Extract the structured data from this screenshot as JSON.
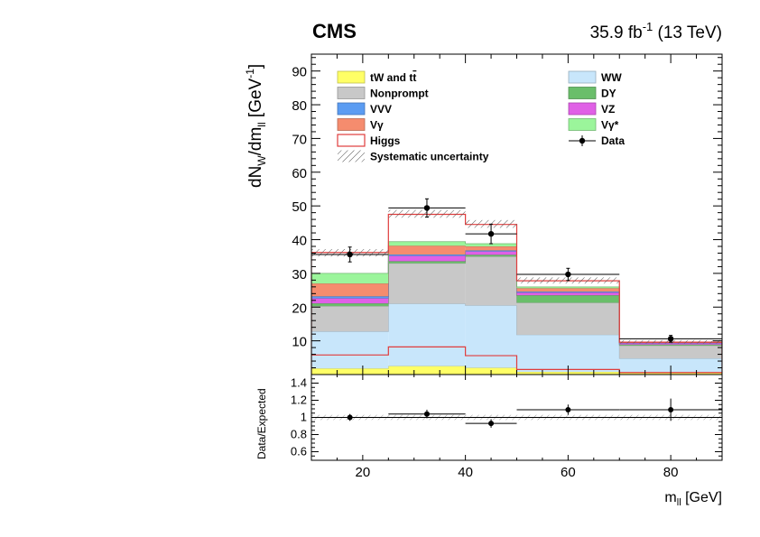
{
  "header": {
    "experiment": "CMS",
    "lumi": "35.9 fb",
    "lumi_exp": "-1",
    "energy": " (13 TeV)"
  },
  "axis_text": {
    "y_main_a": "dN",
    "y_main_sub1": "W",
    "y_main_b": "/dm",
    "y_main_sub2": "ll",
    "y_main_c": " [GeV",
    "y_main_sup": "-1",
    "y_main_d": "]",
    "y_ratio": "Data/Expected",
    "x_a": "m",
    "x_sub": "ll",
    "x_b": " [GeV]"
  },
  "legend": [
    {
      "key": "tw",
      "label": "tW and t",
      "tbar": "t",
      "color": "#ffff66",
      "style": "fill",
      "pos": "left-1"
    },
    {
      "key": "ww",
      "label": "WW",
      "color": "#c8e6fb",
      "style": "fill",
      "pos": "right-1"
    },
    {
      "key": "np",
      "label": "Nonprompt",
      "color": "#c8c8c8",
      "style": "fill",
      "pos": "left-2"
    },
    {
      "key": "dy",
      "label": "DY",
      "color": "#6abe6a",
      "style": "fill",
      "pos": "right-2"
    },
    {
      "key": "vvv",
      "label": "VVV",
      "color": "#5b9cf2",
      "style": "fill",
      "pos": "left-3"
    },
    {
      "key": "vz",
      "label": "VZ",
      "color": "#e060e6",
      "style": "fill",
      "pos": "right-3"
    },
    {
      "key": "vg",
      "label": "Vγ",
      "color": "#f58c6e",
      "style": "fill",
      "pos": "left-4"
    },
    {
      "key": "vgs",
      "label": "Vγ*",
      "color": "#9bf59b",
      "style": "fill",
      "pos": "right-4"
    },
    {
      "key": "higgs",
      "label": "Higgs",
      "color": "#e03c3c",
      "style": "line",
      "pos": "left-5"
    },
    {
      "key": "data",
      "label": "Data",
      "color": "#000000",
      "style": "marker",
      "pos": "right-5"
    },
    {
      "key": "syst",
      "label": "Systematic uncertainty",
      "color": "#888888",
      "style": "hatch",
      "pos": "left-6"
    }
  ],
  "chart_data": [
    {
      "type": "bar",
      "stacked": true,
      "panel": "main",
      "bin_edges": [
        10,
        25,
        40,
        50,
        70,
        90
      ],
      "xlim": [
        10,
        90
      ],
      "ylim": [
        0,
        95
      ],
      "x_ticks": [
        "20",
        "40",
        "60",
        "80"
      ],
      "y_ticks": [
        "10",
        "20",
        "30",
        "40",
        "50",
        "60",
        "70",
        "80",
        "90"
      ],
      "series": [
        {
          "name": "tW and t̄t",
          "values": [
            1.8,
            2.5,
            2.0,
            0.8,
            0.5
          ],
          "color": "#ffff66"
        },
        {
          "name": "WW",
          "values": [
            11.0,
            18.5,
            18.5,
            11.0,
            4.3
          ],
          "color": "#c8e6fb"
        },
        {
          "name": "Nonprompt",
          "values": [
            7.5,
            12.0,
            14.5,
            9.5,
            3.8
          ],
          "color": "#c8c8c8"
        },
        {
          "name": "DY",
          "values": [
            0.8,
            0.6,
            0.5,
            2.2,
            0.3
          ],
          "color": "#6abe6a"
        },
        {
          "name": "VZ",
          "values": [
            1.5,
            1.6,
            1.0,
            0.8,
            0.4
          ],
          "color": "#e060e6"
        },
        {
          "name": "VVV",
          "values": [
            0.6,
            0.4,
            0.3,
            0.3,
            0.1
          ],
          "color": "#5b9cf2"
        },
        {
          "name": "Vγ",
          "values": [
            3.8,
            2.6,
            1.2,
            1.0,
            0.1
          ],
          "color": "#f58c6e"
        },
        {
          "name": "Vγ*",
          "values": [
            3.0,
            1.2,
            0.8,
            0.4,
            0.1
          ],
          "color": "#9bf59b"
        }
      ],
      "higgs_top": [
        36.2,
        47.5,
        44.5,
        27.8,
        9.6
      ],
      "higgs_component": [
        5.8,
        8.2,
        5.6,
        1.5,
        0.6
      ],
      "syst_band": [
        [
          35.0,
          37.2
        ],
        [
          46.5,
          48.8
        ],
        [
          43.5,
          45.8
        ],
        [
          27.0,
          28.8
        ],
        [
          9.2,
          10.2
        ]
      ],
      "data": {
        "x": [
          17.5,
          32.5,
          45,
          60,
          80
        ],
        "y": [
          35.6,
          49.4,
          41.7,
          29.7,
          10.6
        ],
        "err": [
          2.2,
          2.7,
          2.9,
          1.8,
          1.0
        ]
      }
    },
    {
      "type": "scatter",
      "panel": "ratio",
      "ylabel": "Data/Expected",
      "xlabel": "m_ll [GeV]",
      "xlim": [
        10,
        90
      ],
      "ylim": [
        0.5,
        1.5
      ],
      "y_ticks": [
        "0.6",
        "0.8",
        "1",
        "1.2",
        "1.4"
      ],
      "x": [
        17.5,
        32.5,
        45,
        60,
        80
      ],
      "x_err": [
        7.5,
        7.5,
        5,
        10,
        10
      ],
      "y": [
        1.0,
        1.04,
        0.93,
        1.09,
        1.09
      ],
      "y_err": [
        0.04,
        0.05,
        0.05,
        0.06,
        0.13
      ],
      "syst_band": [
        0.97,
        1.03
      ]
    }
  ]
}
